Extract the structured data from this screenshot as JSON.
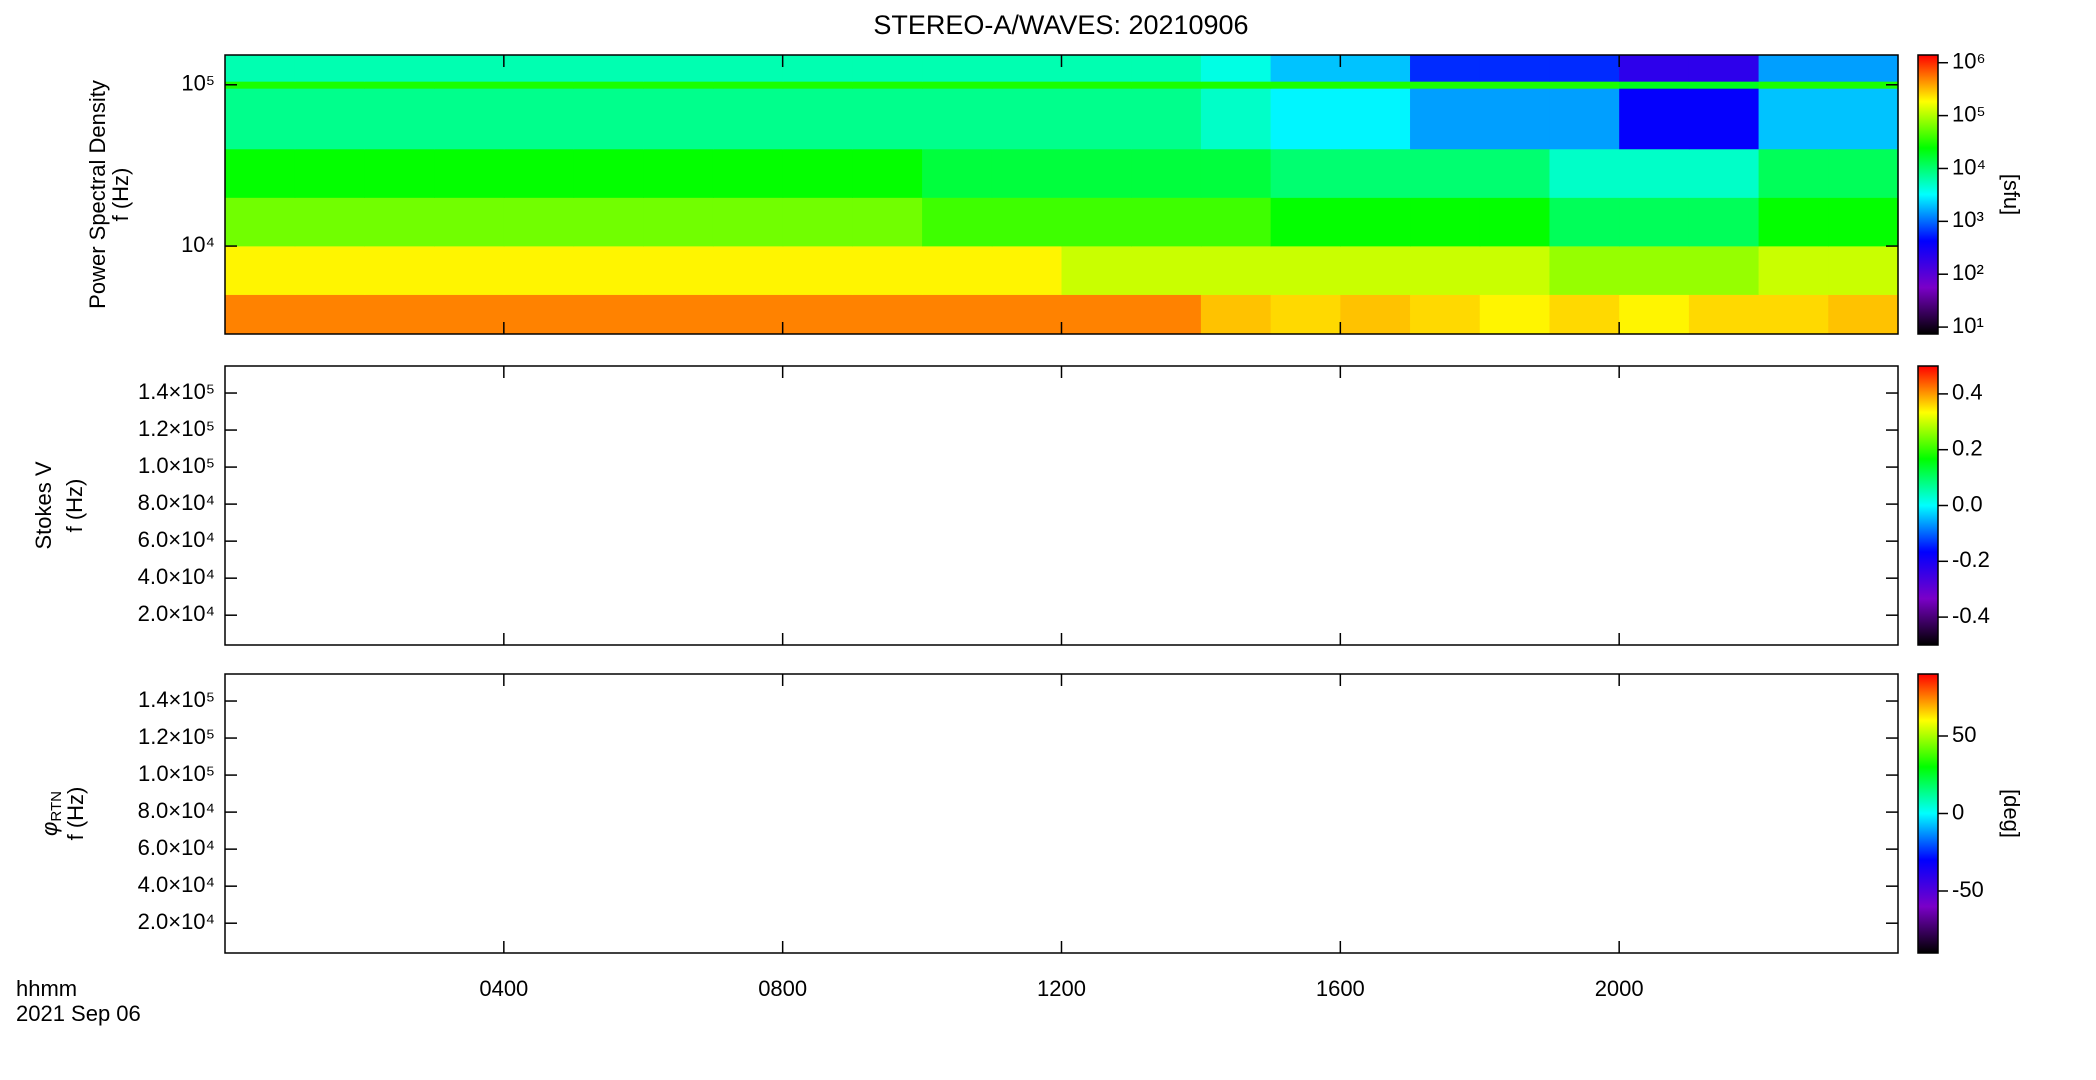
{
  "chart_data": [
    {
      "type": "heatmap",
      "title": "STEREO-A/WAVES: 20210906",
      "ylabel": "Power Spectral Density",
      "ylabel_unit": "f (Hz)",
      "x_edges": [
        0,
        1,
        2,
        3,
        4,
        5,
        6,
        7,
        8,
        9,
        10,
        11,
        12,
        13,
        14,
        15,
        16,
        17,
        18,
        19,
        20,
        21,
        22,
        23,
        24
      ],
      "y_edges": [
        2850,
        5000,
        10000,
        20000,
        40000,
        95000,
        105000,
        153000
      ],
      "z": [
        [
          500000,
          500000,
          500000,
          500000,
          500000,
          500000,
          500000,
          500000,
          500000,
          500000,
          500000,
          500000,
          500000,
          500000,
          300000,
          250000,
          300000,
          250000,
          200000,
          250000,
          200000,
          250000,
          250000,
          300000
        ],
        [
          200000,
          200000,
          200000,
          200000,
          200000,
          200000,
          200000,
          200000,
          200000,
          200000,
          200000,
          200000,
          120000,
          120000,
          120000,
          120000,
          120000,
          120000,
          120000,
          80000,
          80000,
          80000,
          120000,
          120000
        ],
        [
          60000,
          60000,
          60000,
          60000,
          60000,
          60000,
          60000,
          60000,
          60000,
          60000,
          40000,
          40000,
          40000,
          40000,
          40000,
          25000,
          25000,
          25000,
          25000,
          12000,
          12000,
          12000,
          25000,
          25000
        ],
        [
          25000,
          25000,
          25000,
          25000,
          25000,
          25000,
          25000,
          25000,
          25000,
          25000,
          15000,
          15000,
          15000,
          15000,
          15000,
          10000,
          10000,
          10000,
          10000,
          5000,
          5000,
          5000,
          12000,
          12000
        ],
        [
          8000,
          8000,
          8000,
          8000,
          8000,
          8000,
          8000,
          8000,
          8000,
          8000,
          8000,
          8000,
          8000,
          8000,
          5000,
          3000,
          3000,
          1500,
          1500,
          1500,
          400,
          400,
          2000,
          2000
        ],
        [
          30000,
          30000,
          30000,
          30000,
          30000,
          30000,
          30000,
          30000,
          30000,
          30000,
          30000,
          30000,
          30000,
          30000,
          30000,
          30000,
          30000,
          30000,
          30000,
          30000,
          20000,
          20000,
          30000,
          30000
        ],
        [
          6000,
          6000,
          6000,
          6000,
          6000,
          6000,
          6000,
          6000,
          6000,
          6000,
          6000,
          6000,
          6000,
          6000,
          4000,
          2000,
          2000,
          600,
          600,
          600,
          200,
          200,
          1500,
          1500
        ]
      ],
      "xlim": [
        0,
        24
      ],
      "ylim": [
        2850,
        153000
      ],
      "ylog": true,
      "yticks": [
        {
          "value": 10000,
          "label": "10⁴"
        },
        {
          "value": 100000,
          "label": "10⁵"
        }
      ],
      "clim": [
        7.4,
        1400000
      ],
      "clog": true,
      "cticks": [
        {
          "value": 10,
          "label": "10¹"
        },
        {
          "value": 100,
          "label": "10²"
        },
        {
          "value": 1000,
          "label": "10³"
        },
        {
          "value": 10000,
          "label": "10⁴"
        },
        {
          "value": 100000,
          "label": "10⁵"
        },
        {
          "value": 1000000,
          "label": "10⁶"
        }
      ],
      "clabel": "[sfu]",
      "colorscale": [
        "#000000",
        "#7a00c8",
        "#0000ff",
        "#00ffff",
        "#00ff00",
        "#ffff00",
        "#ff0000"
      ]
    },
    {
      "type": "heatmap",
      "ylabel": "Stokes V",
      "ylabel_unit": "f (Hz)",
      "xlim": [
        0,
        24
      ],
      "ylim": [
        3900,
        154600
      ],
      "ylog": false,
      "yticks": [
        {
          "value": 20000,
          "label": "2.0×10⁴"
        },
        {
          "value": 40000,
          "label": "4.0×10⁴"
        },
        {
          "value": 60000,
          "label": "6.0×10⁴"
        },
        {
          "value": 80000,
          "label": "8.0×10⁴"
        },
        {
          "value": 100000,
          "label": "1.0×10⁵"
        },
        {
          "value": 120000,
          "label": "1.2×10⁵"
        },
        {
          "value": 140000,
          "label": "1.4×10⁵"
        }
      ],
      "clim": [
        -0.5,
        0.5
      ],
      "clog": false,
      "cticks": [
        -0.4,
        -0.2,
        {
          "value": 0,
          "label": "0.0"
        },
        0.2,
        0.4
      ],
      "colorscale": [
        "#000000",
        "#7a00c8",
        "#0000ff",
        "#00ffff",
        "#00ff00",
        "#ffff00",
        "#ff0000"
      ]
    },
    {
      "type": "heatmap",
      "ylabel_symbol": "φ",
      "ylabel_subscript": "RTN",
      "ylabel_unit": "f (Hz)",
      "xlim": [
        0,
        24
      ],
      "xticks": [
        {
          "value": 4,
          "label": "0400"
        },
        {
          "value": 8,
          "label": "0800"
        },
        {
          "value": 12,
          "label": "1200"
        },
        {
          "value": 16,
          "label": "1600"
        },
        {
          "value": 20,
          "label": "2000"
        }
      ],
      "xlabel": "hhmm",
      "date": "2021 Sep 06",
      "ylim": [
        3900,
        154600
      ],
      "ylog": false,
      "yticks": [
        {
          "value": 20000,
          "label": "2.0×10⁴"
        },
        {
          "value": 40000,
          "label": "4.0×10⁴"
        },
        {
          "value": 60000,
          "label": "6.0×10⁴"
        },
        {
          "value": 80000,
          "label": "8.0×10⁴"
        },
        {
          "value": 100000,
          "label": "1.0×10⁵"
        },
        {
          "value": 120000,
          "label": "1.2×10⁵"
        },
        {
          "value": 140000,
          "label": "1.4×10⁵"
        }
      ],
      "clim": [
        -90,
        90
      ],
      "clog": false,
      "cticks": [
        -50,
        0,
        50
      ],
      "clabel": "[deg]",
      "colorscale": [
        "#000000",
        "#7a00c8",
        "#0000ff",
        "#00ffff",
        "#00ff00",
        "#ffff00",
        "#ff0000"
      ]
    }
  ]
}
